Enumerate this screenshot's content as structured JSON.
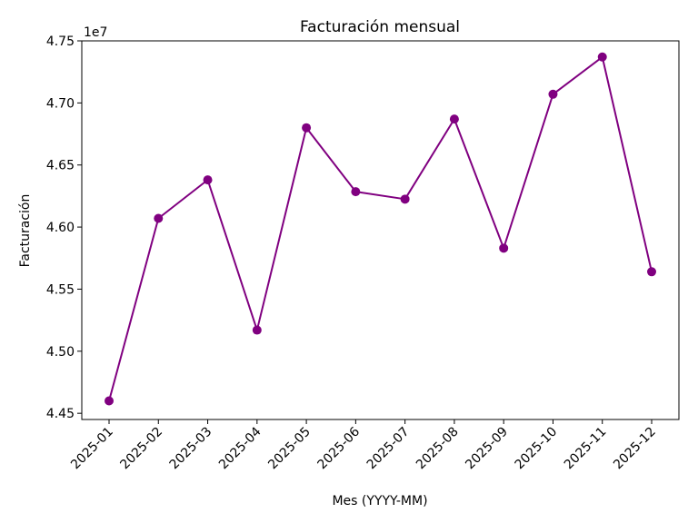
{
  "chart_data": {
    "type": "line",
    "title": "Facturación mensual",
    "xlabel": "Mes (YYYY-MM)",
    "ylabel": "Facturación",
    "y_offset_label": "1e7",
    "categories": [
      "2025-01",
      "2025-02",
      "2025-03",
      "2025-04",
      "2025-05",
      "2025-06",
      "2025-07",
      "2025-08",
      "2025-09",
      "2025-10",
      "2025-11",
      "2025-12"
    ],
    "series": [
      {
        "values": [
          44600000,
          46070000,
          46380000,
          45170000,
          46800000,
          46285000,
          46225000,
          46870000,
          45830000,
          47070000,
          47370000,
          45640000
        ],
        "color": "#800080"
      }
    ],
    "ylim": [
      44450000,
      47500000
    ],
    "yticks": [
      44500000,
      45000000,
      45500000,
      46000000,
      46500000,
      47000000,
      47500000
    ],
    "ytick_labels": [
      "4.45",
      "4.50",
      "4.55",
      "4.60",
      "4.65",
      "4.70",
      "4.75"
    ],
    "grid": false,
    "legend": "none"
  }
}
